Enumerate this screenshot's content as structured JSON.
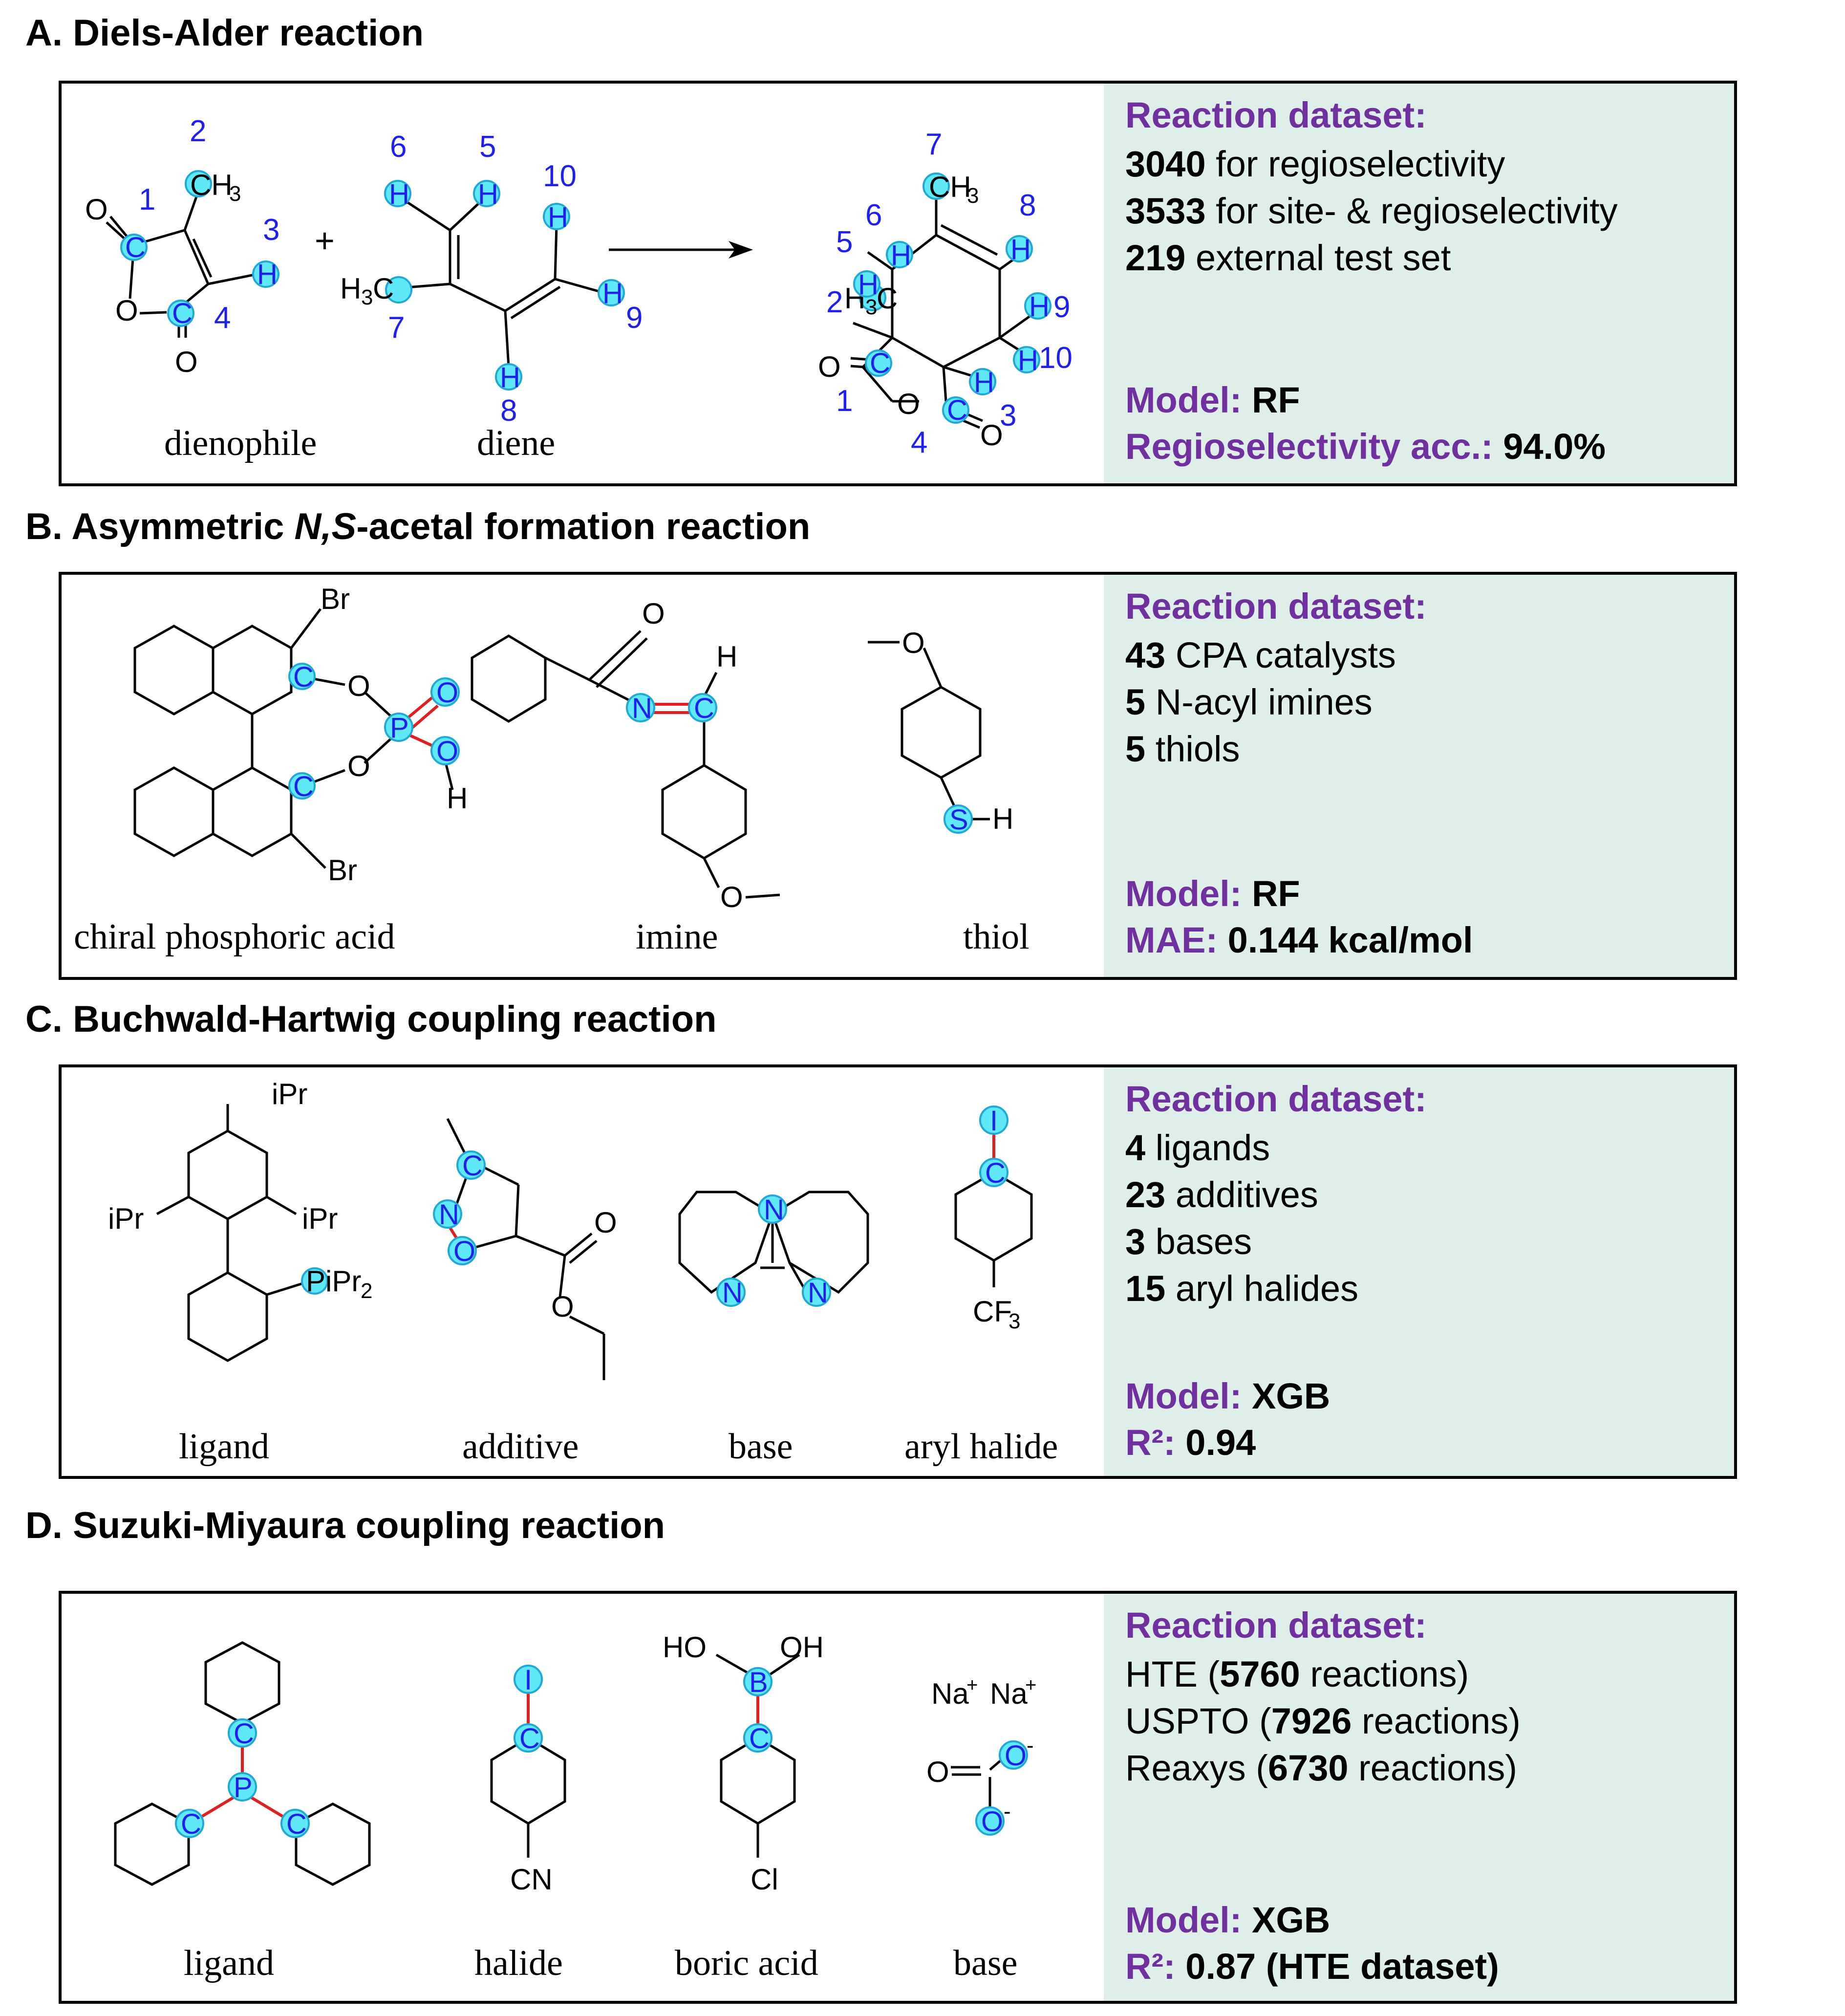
{
  "sections": [
    {
      "title": "A. Diels-Alder reaction",
      "captions": [
        "dienophile",
        "diene"
      ],
      "dataset_head": "Reaction dataset:",
      "dataset_lines": [
        {
          "value": "3040",
          "label": " for regioselectivity"
        },
        {
          "value": "3533",
          "label": " for site- & regioselectivity"
        },
        {
          "value": "219",
          "label": " external test set"
        }
      ],
      "model_key": "Model: ",
      "model_val": "RF",
      "metric_key": "Regioselectivity acc.: ",
      "metric_val": "94.0%"
    },
    {
      "title_pre": "B. Asymmetric ",
      "title_em": "N,S",
      "title_post": "-acetal formation reaction",
      "captions": [
        "chiral phosphoric acid",
        "imine",
        "thiol"
      ],
      "dataset_head": "Reaction dataset:",
      "dataset_lines": [
        {
          "value": "43",
          "label": " CPA catalysts"
        },
        {
          "value": "5",
          "label": " N-acyl imines"
        },
        {
          "value": "5",
          "label": " thiols"
        }
      ],
      "model_key": "Model: ",
      "model_val": "RF",
      "metric_key": "MAE: ",
      "metric_val": "0.144 kcal/mol"
    },
    {
      "title": "C. Buchwald-Hartwig coupling reaction",
      "captions": [
        "ligand",
        "additive",
        "base",
        "aryl halide"
      ],
      "dataset_head": "Reaction dataset:",
      "dataset_lines": [
        {
          "value": "4",
          "label": " ligands"
        },
        {
          "value": "23",
          "label": " additives"
        },
        {
          "value": "3",
          "label": " bases"
        },
        {
          "value": "15",
          "label": " aryl halides"
        }
      ],
      "model_key": "Model: ",
      "model_val": "XGB",
      "metric_key": "R²: ",
      "metric_val": "0.94"
    },
    {
      "title": "D. Suzuki-Miyaura coupling reaction",
      "captions": [
        "ligand",
        "halide",
        "boric acid",
        "base"
      ],
      "dataset_head": "Reaction dataset:",
      "dataset_lines": [
        {
          "pre": "HTE (",
          "value": "5760",
          "label": " reactions)"
        },
        {
          "pre": "USPTO (",
          "value": "7926",
          "label": " reactions)"
        },
        {
          "pre": "Reaxys (",
          "value": "6730",
          "label": " reactions)"
        }
      ],
      "model_key": "Model: ",
      "model_val": "XGB",
      "metric_key": "R²: ",
      "metric_val": "0.87 (HTE dataset)"
    }
  ]
}
